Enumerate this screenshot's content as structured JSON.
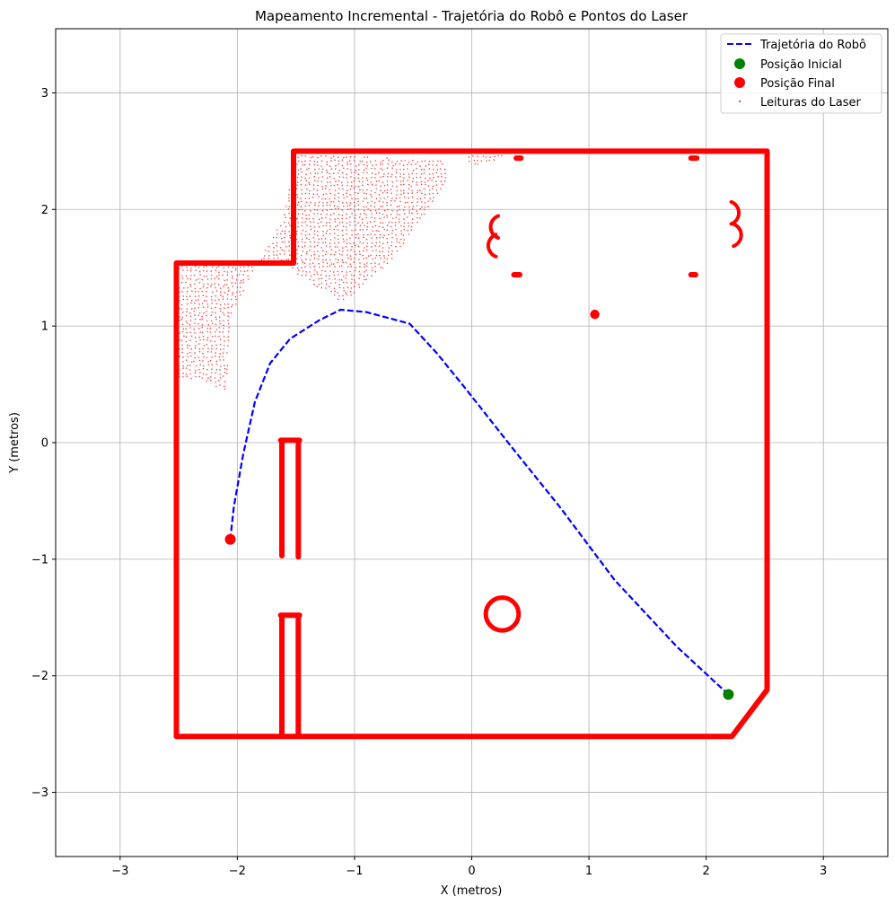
{
  "chart_data": {
    "type": "scatter",
    "title": "Mapeamento Incremental - Trajetória do Robô e Pontos do Laser",
    "xlabel": "X (metros)",
    "ylabel": "Y (metros)",
    "xlim": [
      -3.55,
      3.55
    ],
    "ylim": [
      -3.55,
      3.55
    ],
    "xticks": [
      -3,
      -2,
      -1,
      0,
      1,
      2,
      3
    ],
    "yticks": [
      -3,
      -2,
      -1,
      0,
      1,
      2,
      3
    ],
    "xtick_labels": [
      "−3",
      "−2",
      "−1",
      "0",
      "1",
      "2",
      "3"
    ],
    "ytick_labels": [
      "−3",
      "−2",
      "−1",
      "0",
      "1",
      "2",
      "3"
    ],
    "grid": true,
    "legend_position": "top-right",
    "legend": [
      {
        "label": "Trajetória do Robô",
        "kind": "dashed-line",
        "color": "#0000ff"
      },
      {
        "label": "Posição Inicial",
        "kind": "marker",
        "color": "#008000"
      },
      {
        "label": "Posição Final",
        "kind": "marker",
        "color": "#ff0000"
      },
      {
        "label": "Leituras do Laser",
        "kind": "small-dot",
        "color": "#ff0000"
      }
    ],
    "trajectory": {
      "name": "Trajetória do Robô",
      "color": "#0000ff",
      "points": [
        [
          2.19,
          -2.16
        ],
        [
          1.75,
          -1.75
        ],
        [
          1.22,
          -1.18
        ],
        [
          0.75,
          -0.55
        ],
        [
          0.35,
          -0.05
        ],
        [
          -0.05,
          0.46
        ],
        [
          -0.3,
          0.77
        ],
        [
          -0.53,
          1.02
        ],
        [
          -0.9,
          1.12
        ],
        [
          -1.12,
          1.14
        ],
        [
          -1.3,
          1.05
        ],
        [
          -1.55,
          0.89
        ],
        [
          -1.72,
          0.68
        ],
        [
          -1.85,
          0.35
        ],
        [
          -1.95,
          -0.1
        ],
        [
          -2.03,
          -0.55
        ],
        [
          -2.06,
          -0.83
        ]
      ]
    },
    "start_position": {
      "name": "Posição Inicial",
      "x": 2.19,
      "y": -2.16,
      "color": "#008000"
    },
    "final_position": {
      "name": "Posição Final",
      "x": -2.06,
      "y": -0.83,
      "color": "#ff0000"
    },
    "laser_walls": {
      "name": "Leituras do Laser",
      "color": "#ff0000",
      "polylines": [
        [
          [
            -2.52,
            -2.52
          ],
          [
            -2.52,
            1.54
          ],
          [
            -1.52,
            1.54
          ],
          [
            -1.52,
            2.5
          ],
          [
            2.52,
            2.5
          ],
          [
            2.52,
            -2.12
          ],
          [
            2.22,
            -2.52
          ],
          [
            -2.52,
            -2.52
          ]
        ],
        [
          [
            -1.62,
            0.02
          ],
          [
            -1.62,
            -0.97
          ]
        ],
        [
          [
            -1.48,
            0.02
          ],
          [
            -1.48,
            -0.98
          ]
        ],
        [
          [
            -1.63,
            0.02
          ],
          [
            -1.47,
            0.02
          ]
        ],
        [
          [
            -1.62,
            -1.48
          ],
          [
            -1.62,
            -2.52
          ]
        ],
        [
          [
            -1.48,
            -1.48
          ],
          [
            -1.48,
            -2.52
          ]
        ],
        [
          [
            -1.63,
            -1.48
          ],
          [
            -1.47,
            -1.48
          ]
        ],
        [
          [
            0.38,
            2.44
          ],
          [
            0.42,
            2.44
          ]
        ],
        [
          [
            1.87,
            2.44
          ],
          [
            1.92,
            2.44
          ]
        ],
        [
          [
            0.36,
            1.44
          ],
          [
            0.41,
            1.44
          ]
        ],
        [
          [
            1.87,
            1.44
          ],
          [
            1.91,
            1.44
          ]
        ]
      ],
      "arcs": [
        {
          "cx": 0.26,
          "cy": -1.47,
          "r": 0.14
        },
        {
          "cx": 0.26,
          "cy": 1.85,
          "r": 0.1,
          "start": 110,
          "end": 250
        },
        {
          "cx": 0.24,
          "cy": 1.69,
          "r": 0.1,
          "start": 110,
          "end": 250
        },
        {
          "cx": 2.18,
          "cy": 1.97,
          "r": 0.1,
          "start": -70,
          "end": 70
        },
        {
          "cx": 2.2,
          "cy": 1.78,
          "r": 0.1,
          "start": -70,
          "end": 70
        }
      ],
      "blobs": [
        {
          "x": 1.05,
          "y": 1.1,
          "r": 0.04
        }
      ],
      "scatter_regions": [
        {
          "polygon": [
            [
              -2.5,
              1.52
            ],
            [
              -1.55,
              1.52
            ],
            [
              -1.5,
              1.45
            ],
            [
              -1.1,
              1.2
            ],
            [
              -0.7,
              1.55
            ],
            [
              -0.4,
              1.95
            ],
            [
              -0.2,
              2.25
            ],
            [
              -0.25,
              2.42
            ],
            [
              -1.5,
              2.48
            ],
            [
              -1.6,
              1.95
            ],
            [
              -2.05,
              1.1
            ],
            [
              -2.1,
              0.42
            ],
            [
              -2.3,
              0.55
            ],
            [
              -2.5,
              0.55
            ]
          ]
        },
        {
          "polygon": [
            [
              0.0,
              2.35
            ],
            [
              0.35,
              2.48
            ],
            [
              -0.05,
              2.48
            ]
          ]
        }
      ]
    }
  }
}
